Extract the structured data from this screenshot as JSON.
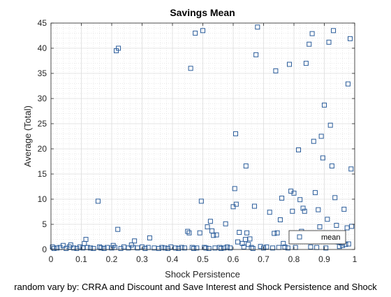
{
  "chart_data": {
    "type": "scatter",
    "title": "Savings Mean",
    "xlabel": "Shock Persistence",
    "ylabel": "Average (Total)",
    "caption": "random vary by: CRRA and Discount and Save Interest and Shock Persistence and Shock",
    "xlim": [
      0,
      1
    ],
    "ylim": [
      0,
      45
    ],
    "xticks": [
      "0",
      "0.1",
      "0.2",
      "0.3",
      "0.4",
      "0.5",
      "0.6",
      "0.7",
      "0.8",
      "0.9",
      "1"
    ],
    "yticks": [
      "0",
      "5",
      "10",
      "15",
      "20",
      "25",
      "30",
      "35",
      "40",
      "45"
    ],
    "grid": true,
    "minor_grid": true,
    "legend": {
      "position": "bottom-right",
      "entries": [
        "mean"
      ]
    },
    "colors": {
      "marker": "#2b5d9b",
      "grid": "#dcdcdc",
      "axis": "#262626"
    },
    "series": [
      {
        "name": "mean",
        "marker": "square",
        "points": [
          [
            0.005,
            0.5
          ],
          [
            0.01,
            0.2
          ],
          [
            0.02,
            0.3
          ],
          [
            0.03,
            0.4
          ],
          [
            0.04,
            0.8
          ],
          [
            0.05,
            0.2
          ],
          [
            0.06,
            0.5
          ],
          [
            0.065,
            0.9
          ],
          [
            0.075,
            0.3
          ],
          [
            0.085,
            0.2
          ],
          [
            0.095,
            0.5
          ],
          [
            0.105,
            0.3
          ],
          [
            0.11,
            1.2
          ],
          [
            0.115,
            2.0
          ],
          [
            0.12,
            0.4
          ],
          [
            0.13,
            0.3
          ],
          [
            0.14,
            0.2
          ],
          [
            0.155,
            9.6
          ],
          [
            0.16,
            0.5
          ],
          [
            0.165,
            0.3
          ],
          [
            0.175,
            0.2
          ],
          [
            0.185,
            0.4
          ],
          [
            0.2,
            0.3
          ],
          [
            0.205,
            0.8
          ],
          [
            0.21,
            0.4
          ],
          [
            0.215,
            39.5
          ],
          [
            0.22,
            4.0
          ],
          [
            0.222,
            40.0
          ],
          [
            0.23,
            0.2
          ],
          [
            0.24,
            0.5
          ],
          [
            0.255,
            0.3
          ],
          [
            0.265,
            0.9
          ],
          [
            0.27,
            0.4
          ],
          [
            0.275,
            1.7
          ],
          [
            0.285,
            0.3
          ],
          [
            0.3,
            0.5
          ],
          [
            0.31,
            0.2
          ],
          [
            0.32,
            0.4
          ],
          [
            0.325,
            2.3
          ],
          [
            0.34,
            0.3
          ],
          [
            0.355,
            0.2
          ],
          [
            0.365,
            0.4
          ],
          [
            0.375,
            0.3
          ],
          [
            0.385,
            0.2
          ],
          [
            0.395,
            0.5
          ],
          [
            0.41,
            0.3
          ],
          [
            0.42,
            0.2
          ],
          [
            0.43,
            0.4
          ],
          [
            0.44,
            0.3
          ],
          [
            0.45,
            3.6
          ],
          [
            0.455,
            3.3
          ],
          [
            0.46,
            36.0
          ],
          [
            0.465,
            0.4
          ],
          [
            0.47,
            0.2
          ],
          [
            0.475,
            43.0
          ],
          [
            0.48,
            0.3
          ],
          [
            0.49,
            3.3
          ],
          [
            0.495,
            9.6
          ],
          [
            0.5,
            43.5
          ],
          [
            0.505,
            0.4
          ],
          [
            0.51,
            0.3
          ],
          [
            0.515,
            4.5
          ],
          [
            0.52,
            0.2
          ],
          [
            0.525,
            5.6
          ],
          [
            0.53,
            3.7
          ],
          [
            0.535,
            2.8
          ],
          [
            0.54,
            0.3
          ],
          [
            0.545,
            2.9
          ],
          [
            0.555,
            0.4
          ],
          [
            0.56,
            0.2
          ],
          [
            0.57,
            0.3
          ],
          [
            0.575,
            5.1
          ],
          [
            0.58,
            0.5
          ],
          [
            0.59,
            0.3
          ],
          [
            0.6,
            8.5
          ],
          [
            0.605,
            12.1
          ],
          [
            0.608,
            23.0
          ],
          [
            0.61,
            9.0
          ],
          [
            0.615,
            1.5
          ],
          [
            0.62,
            3.4
          ],
          [
            0.63,
            1.2
          ],
          [
            0.635,
            0.5
          ],
          [
            0.64,
            2.0
          ],
          [
            0.642,
            16.6
          ],
          [
            0.645,
            3.3
          ],
          [
            0.65,
            1.0
          ],
          [
            0.655,
            2.1
          ],
          [
            0.66,
            0.4
          ],
          [
            0.665,
            0.2
          ],
          [
            0.67,
            8.6
          ],
          [
            0.675,
            38.7
          ],
          [
            0.68,
            44.2
          ],
          [
            0.69,
            0.6
          ],
          [
            0.7,
            0.3
          ],
          [
            0.71,
            0.5
          ],
          [
            0.72,
            7.4
          ],
          [
            0.73,
            0.3
          ],
          [
            0.735,
            3.2
          ],
          [
            0.74,
            35.5
          ],
          [
            0.745,
            3.3
          ],
          [
            0.75,
            0.4
          ],
          [
            0.755,
            5.9
          ],
          [
            0.76,
            10.2
          ],
          [
            0.765,
            1.2
          ],
          [
            0.77,
            0.5
          ],
          [
            0.78,
            0.3
          ],
          [
            0.785,
            36.8
          ],
          [
            0.79,
            11.6
          ],
          [
            0.795,
            7.6
          ],
          [
            0.8,
            11.2
          ],
          [
            0.805,
            0.4
          ],
          [
            0.81,
            2.5
          ],
          [
            0.815,
            19.8
          ],
          [
            0.82,
            9.9
          ],
          [
            0.825,
            3.6
          ],
          [
            0.83,
            8.2
          ],
          [
            0.835,
            7.6
          ],
          [
            0.84,
            37.0
          ],
          [
            0.845,
            2.9
          ],
          [
            0.85,
            40.8
          ],
          [
            0.855,
            0.5
          ],
          [
            0.86,
            42.9
          ],
          [
            0.865,
            21.5
          ],
          [
            0.87,
            11.3
          ],
          [
            0.875,
            0.4
          ],
          [
            0.88,
            7.9
          ],
          [
            0.885,
            4.5
          ],
          [
            0.89,
            22.5
          ],
          [
            0.895,
            18.2
          ],
          [
            0.9,
            28.7
          ],
          [
            0.905,
            0.3
          ],
          [
            0.91,
            6.0
          ],
          [
            0.915,
            41.2
          ],
          [
            0.92,
            24.7
          ],
          [
            0.925,
            16.6
          ],
          [
            0.93,
            43.5
          ],
          [
            0.935,
            10.3
          ],
          [
            0.94,
            4.8
          ],
          [
            0.945,
            1.5
          ],
          [
            0.95,
            0.6
          ],
          [
            0.955,
            1.3
          ],
          [
            0.96,
            0.8
          ],
          [
            0.965,
            8.0
          ],
          [
            0.97,
            1.0
          ],
          [
            0.975,
            4.3
          ],
          [
            0.978,
            32.9
          ],
          [
            0.98,
            1.1
          ],
          [
            0.985,
            41.9
          ],
          [
            0.988,
            16.0
          ],
          [
            0.99,
            4.6
          ]
        ]
      }
    ]
  }
}
